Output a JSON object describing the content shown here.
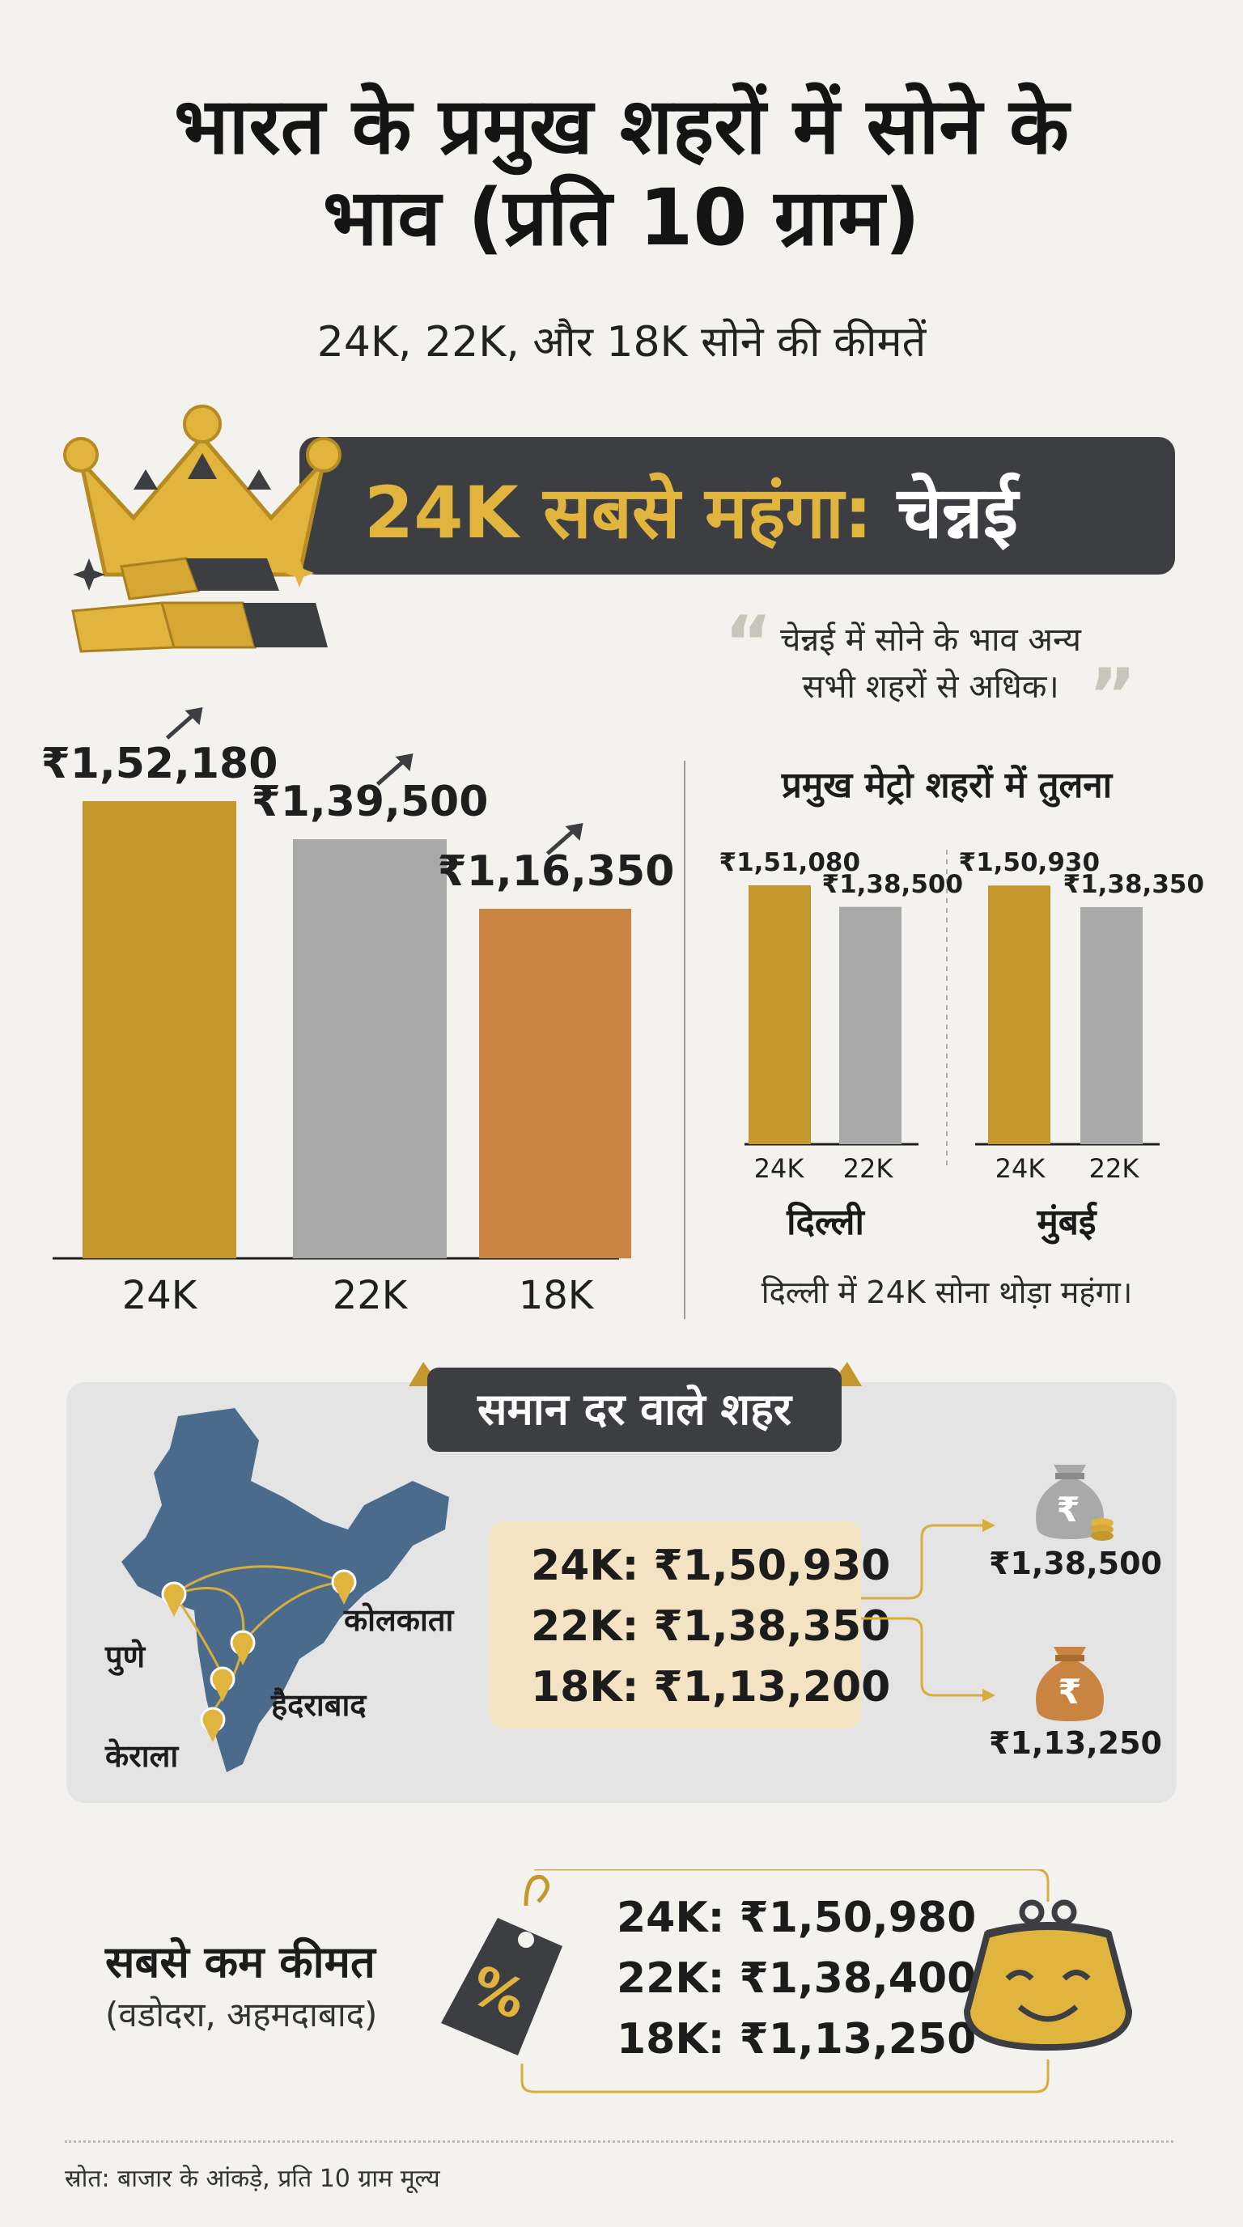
{
  "header": {
    "title_line1": "भारत के प्रमुख शहरों में सोने के",
    "title_line2": "भाव (प्रति 10 ग्राम)",
    "subtitle": "24K, 22K, और 18K सोने की कीमतें"
  },
  "banner": {
    "highlight": "24K सबसे महंगा:",
    "city": "चेन्नई"
  },
  "quote": {
    "line1": "चेन्नई में सोने के भाव अन्य",
    "line2": "सभी शहरों से अधिक।"
  },
  "colors": {
    "gold": "#c4982d",
    "silver": "#a9a9a9",
    "bronze": "#c98442",
    "dark": "#3c3e42",
    "map_blue": "#4b6b8c"
  },
  "chart_data": [
    {
      "type": "bar",
      "title": "चेन्नई",
      "categories": [
        "24K",
        "22K",
        "18K"
      ],
      "values": [
        152180,
        139500,
        116350
      ],
      "value_labels": [
        "₹1,52,180",
        "₹1,39,500",
        "₹1,16,350"
      ],
      "xlabel": "",
      "ylabel": "",
      "ylim": [
        0,
        152180
      ]
    },
    {
      "type": "bar",
      "title": "प्रमुख मेट्रो शहरों में तुलना",
      "groups": [
        {
          "name": "दिल्ली",
          "categories": [
            "24K",
            "22K"
          ],
          "values": [
            151080,
            138500
          ],
          "value_labels": [
            "₹1,51,080",
            "₹1,38,500"
          ]
        },
        {
          "name": "मुंबई",
          "categories": [
            "24K",
            "22K"
          ],
          "values": [
            150930,
            138350
          ],
          "value_labels": [
            "₹1,50,930",
            "₹1,38,350"
          ]
        }
      ],
      "note": "दिल्ली में 24K सोना थोड़ा महंगा।"
    }
  ],
  "same_rate": {
    "title": "समान दर वाले शहर",
    "cities": [
      "पुणे",
      "कोलकाता",
      "हैदराबाद",
      "केराला"
    ],
    "rates": [
      "24K: ₹1,50,930",
      "22K: ₹1,38,350",
      "18K: ₹1,13,200"
    ],
    "bag_prices": [
      "₹1,38,500",
      "₹1,13,250"
    ],
    "rupee_symbol": "₹"
  },
  "lowest": {
    "title": "सबसे कम कीमत",
    "cities": "(वडोदरा, अहमदाबाद)",
    "tag_symbol": "%",
    "rates": [
      "24K: ₹1,50,980",
      "22K: ₹1,38,400",
      "18K: ₹1,13,250"
    ]
  },
  "footer": {
    "source": "स्रोत: बाजार के आंकड़े, प्रति 10 ग्राम मूल्य"
  }
}
